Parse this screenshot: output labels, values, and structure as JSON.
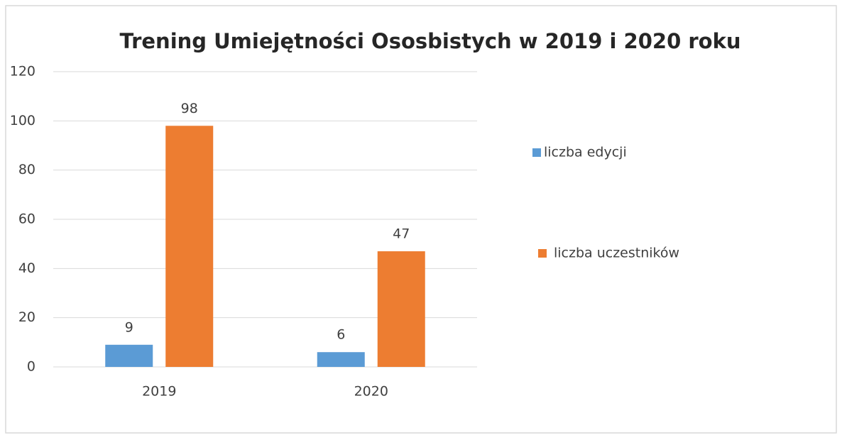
{
  "chart_data": {
    "type": "bar",
    "title": "Trening Umiejętności Ososbistych w 2019 i 2020 roku",
    "categories": [
      "2019",
      "2020"
    ],
    "series": [
      {
        "name": "liczba edycji",
        "color": "#5b9bd5",
        "values": [
          9,
          6
        ]
      },
      {
        "name": "liczba uczestników",
        "color": "#ed7d31",
        "values": [
          98,
          47
        ]
      }
    ],
    "ylim": [
      0,
      120
    ],
    "yticks": [
      0,
      20,
      40,
      60,
      80,
      100,
      120
    ],
    "grid": true,
    "legend": "right"
  }
}
